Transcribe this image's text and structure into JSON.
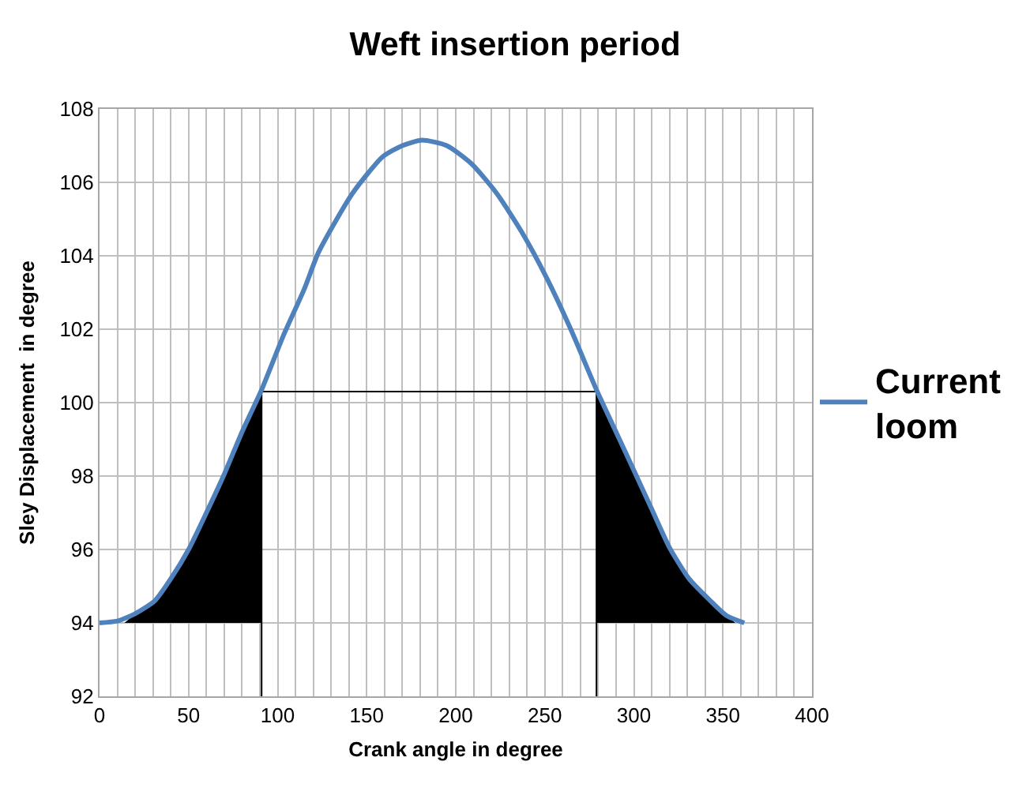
{
  "chart_data": {
    "type": "line",
    "title": "Weft insertion period",
    "xlabel": "Crank angle in degree",
    "ylabel": "Sley Displacement  in degree",
    "xlim": [
      0,
      400
    ],
    "ylim": [
      92,
      108
    ],
    "xticks": [
      0,
      {
        "value": 10,
        "label": null
      },
      {
        "value": 20,
        "label": null
      },
      {
        "value": 30,
        "label": null
      },
      {
        "value": 40,
        "label": null
      },
      50,
      {
        "value": 60,
        "label": null
      },
      {
        "value": 70,
        "label": null
      },
      {
        "value": 80,
        "label": null
      },
      {
        "value": 90,
        "label": null
      },
      100,
      {
        "value": 110,
        "label": null
      },
      {
        "value": 120,
        "label": null
      },
      {
        "value": 130,
        "label": null
      },
      {
        "value": 140,
        "label": null
      },
      150,
      {
        "value": 160,
        "label": null
      },
      {
        "value": 170,
        "label": null
      },
      {
        "value": 180,
        "label": null
      },
      {
        "value": 190,
        "label": null
      },
      200,
      {
        "value": 210,
        "label": null
      },
      {
        "value": 220,
        "label": null
      },
      {
        "value": 230,
        "label": null
      },
      {
        "value": 240,
        "label": null
      },
      250,
      {
        "value": 260,
        "label": null
      },
      {
        "value": 270,
        "label": null
      },
      {
        "value": 280,
        "label": null
      },
      {
        "value": 290,
        "label": null
      },
      300,
      {
        "value": 310,
        "label": null
      },
      {
        "value": 320,
        "label": null
      },
      {
        "value": 330,
        "label": null
      },
      {
        "value": 340,
        "label": null
      },
      350,
      {
        "value": 360,
        "label": null
      },
      {
        "value": 370,
        "label": null
      },
      {
        "value": 380,
        "label": null
      },
      {
        "value": 390,
        "label": null
      },
      400
    ],
    "yticks": [
      92,
      94,
      96,
      98,
      100,
      102,
      104,
      106,
      108
    ],
    "grid": true,
    "legend": "right",
    "marker": "none",
    "line_style": "solid",
    "series": [
      {
        "type": "area",
        "color": "#000000",
        "x": [
          14,
          20,
          31,
          40,
          50,
          60,
          70,
          80,
          91,
          91
        ],
        "values": [
          94,
          94.25,
          94.6,
          95.2,
          96,
          97,
          98.05,
          99.2,
          100.35,
          94
        ]
      },
      {
        "type": "area",
        "color": "#000000",
        "x": [
          279,
          279,
          290,
          301,
          310,
          320,
          331,
          343,
          352,
          357
        ],
        "values": [
          94,
          100.35,
          99.2,
          98.05,
          97.1,
          96.05,
          95.2,
          94.6,
          94.2,
          94
        ]
      },
      {
        "type": "line",
        "color": "#000000",
        "x": [
          91,
          91,
          279,
          279
        ],
        "values": [
          92,
          100.3,
          100.3,
          92
        ]
      },
      {
        "name": "Current loom",
        "color": "#4f81bd",
        "x": [
          0,
          10,
          20,
          31,
          40,
          50,
          60,
          70,
          80,
          91,
          103,
          115,
          123,
          142,
          159,
          170,
          181,
          195,
          209,
          223,
          237,
          251,
          265,
          279,
          290,
          301,
          310,
          320,
          331,
          343,
          352,
          362
        ],
        "values": [
          94,
          94.05,
          94.25,
          94.6,
          95.2,
          96,
          97,
          98.05,
          99.2,
          100.35,
          101.8,
          103.1,
          104.1,
          105.7,
          106.7,
          107,
          107.15,
          107,
          106.5,
          105.7,
          104.65,
          103.4,
          101.95,
          100.35,
          99.2,
          98.05,
          97.1,
          96.05,
          95.2,
          94.6,
          94.2,
          94
        ]
      }
    ]
  }
}
